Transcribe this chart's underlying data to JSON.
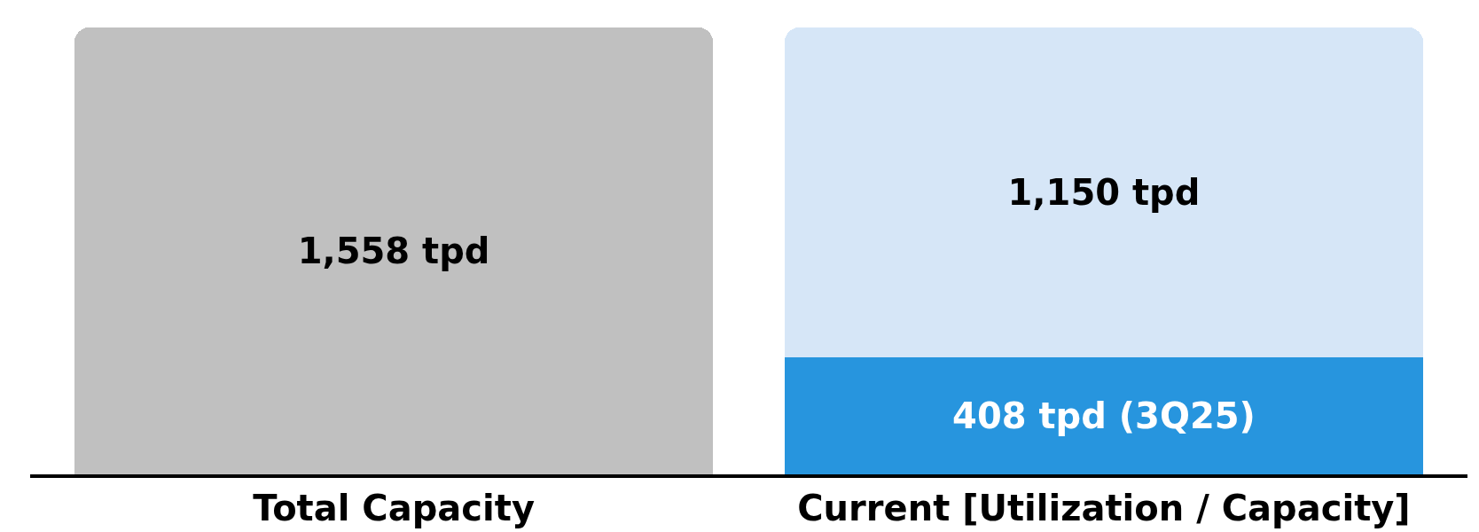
{
  "chart_data": {
    "type": "bar",
    "categories": [
      "Total Capacity",
      "Current [Utilization / Capacity]"
    ],
    "stacked": true,
    "tick_labels": "x",
    "series": [
      {
        "color": "#c0c0c0",
        "values": [
          1558,
          null
        ],
        "value_labels": [
          "1,558 tpd",
          null
        ]
      },
      {
        "color": "#2795de",
        "values": [
          null,
          408
        ],
        "value_labels": [
          null,
          "408 tpd (3Q25)"
        ]
      },
      {
        "color": "#d6e6f7",
        "values": [
          null,
          1150
        ],
        "value_labels": [
          null,
          "1,150 tpd"
        ]
      }
    ]
  }
}
